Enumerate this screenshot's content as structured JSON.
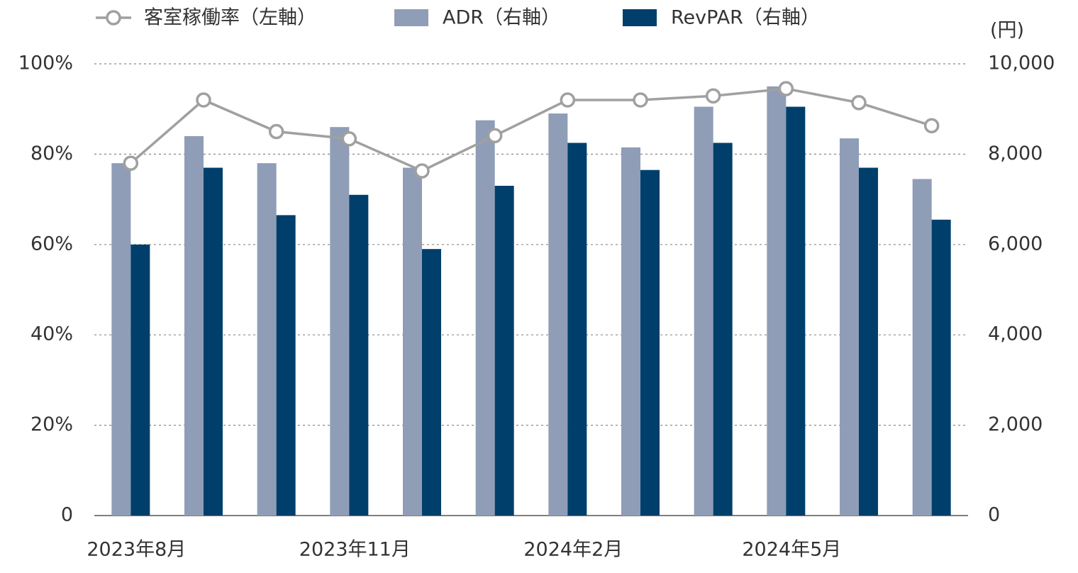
{
  "chart_data": {
    "type": "bar-line",
    "categories": [
      "2023年8月",
      null,
      null,
      "2023年11月",
      null,
      null,
      "2024年2月",
      null,
      null,
      "2024年5月",
      null,
      null
    ],
    "series": [
      {
        "name": "客室稼働率（左軸）",
        "type": "line",
        "color": "#a0a0a0",
        "values": [
          78,
          92,
          85,
          83.4,
          76.3,
          84.1,
          92,
          92,
          92.9,
          94.5,
          91.4,
          86.3
        ]
      },
      {
        "name": "ADR（右軸）",
        "type": "bar",
        "axis": "y2",
        "color": "#8f9db7",
        "values": [
          7800,
          8400,
          7800,
          8600,
          7700,
          8750,
          8900,
          8150,
          9050,
          9500,
          8350,
          7450
        ]
      },
      {
        "name": "RevPAR（右軸）",
        "type": "bar",
        "axis": "y2",
        "color": "#003f6b",
        "values": [
          6000,
          7700,
          6650,
          7100,
          5900,
          7300,
          8250,
          7650,
          8250,
          9050,
          7700,
          6550
        ]
      }
    ],
    "ylim": [
      0,
      100
    ],
    "yticks": [
      0,
      {
        "value": 20,
        "label": "20%"
      },
      {
        "value": 40,
        "label": "40%"
      },
      {
        "value": 60,
        "label": "60%"
      },
      {
        "value": 80,
        "label": "80%"
      },
      {
        "value": 100,
        "label": "100%"
      }
    ],
    "y2label": "(円)",
    "y2lim": [
      0,
      10000
    ],
    "y2ticks": [
      0,
      {
        "value": 2000,
        "label": "2,000"
      },
      {
        "value": 4000,
        "label": "4,000"
      },
      {
        "value": 6000,
        "label": "6,000"
      },
      {
        "value": 8000,
        "label": "8,000"
      },
      {
        "value": 10000,
        "label": "10,000"
      }
    ],
    "grid": true
  }
}
